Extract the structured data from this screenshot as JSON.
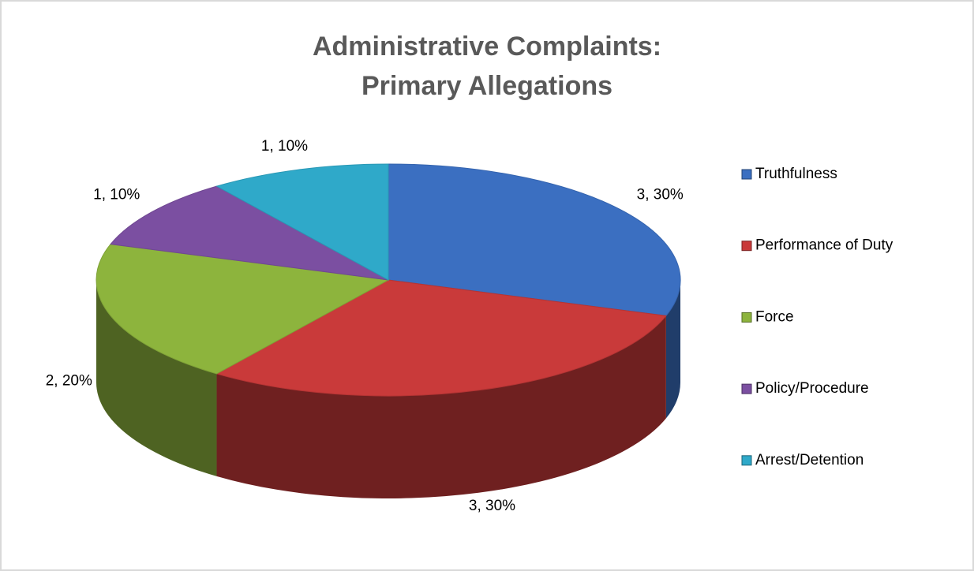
{
  "chart_data": {
    "type": "pie",
    "title": [
      "Administrative Complaints:",
      "Primary Allegations"
    ],
    "categories": [
      "Truthfulness",
      "Performance of Duty",
      "Force",
      "Policy/Procedure",
      "Arrest/Detention"
    ],
    "values": [
      3,
      3,
      2,
      1,
      1
    ],
    "value_labels": [
      "3, 30%",
      "3, 30%",
      "2, 20%",
      "1, 10%",
      "1, 10%"
    ],
    "colors": [
      "#3b6fc1",
      "#c93a3a",
      "#8db43d",
      "#7b4fa1",
      "#2fa9c9"
    ],
    "legend": "right"
  }
}
